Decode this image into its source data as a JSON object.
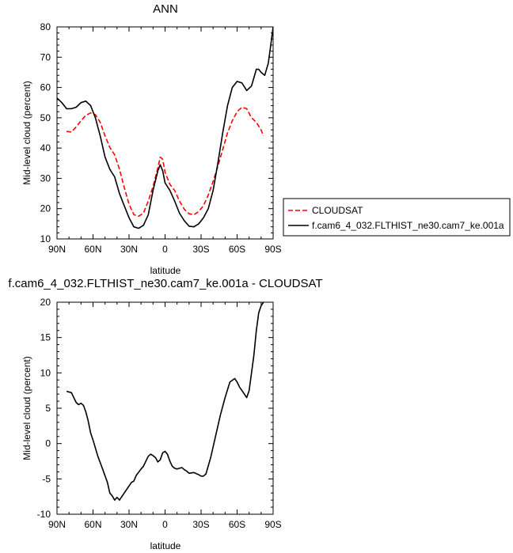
{
  "chart_data": [
    {
      "type": "line",
      "title": "ANN",
      "xlabel": "latitude",
      "ylabel": "Mid-level cloud (percent)",
      "xlim": [
        90,
        -90
      ],
      "ylim": [
        10,
        80
      ],
      "x_tick_values": [
        90,
        60,
        30,
        0,
        -30,
        -60,
        -90
      ],
      "x_tick_labels": [
        "90N",
        "60N",
        "30N",
        "0",
        "30S",
        "60S",
        "90S"
      ],
      "y_tick_values": [
        10,
        20,
        30,
        40,
        50,
        60,
        70,
        80
      ],
      "y_tick_labels": [
        "10",
        "20",
        "30",
        "40",
        "50",
        "60",
        "70",
        "80"
      ],
      "legend": {
        "placement": "right"
      },
      "series": [
        {
          "name": "CLOUDSAT",
          "color": "#ff0000",
          "dash": "dashed",
          "x": [
            82,
            78,
            74,
            70,
            66,
            62,
            58,
            54,
            50,
            46,
            42,
            38,
            34,
            30,
            26,
            22,
            18,
            14,
            10,
            6,
            4,
            2,
            0,
            -4,
            -8,
            -12,
            -16,
            -20,
            -24,
            -28,
            -32,
            -36,
            -40,
            -44,
            -48,
            -52,
            -56,
            -60,
            -64,
            -68,
            -72,
            -76,
            -80,
            -82
          ],
          "y": [
            45.5,
            45.3,
            47,
            49,
            50.8,
            51.6,
            51,
            48.5,
            44,
            40.2,
            37.8,
            33,
            27,
            21.5,
            18,
            17.5,
            18.5,
            22.5,
            27.3,
            33.5,
            37,
            36.3,
            32,
            28,
            26,
            22.5,
            19.8,
            18.3,
            18,
            19,
            21,
            24.5,
            29,
            34,
            39.5,
            45,
            49,
            52,
            53.5,
            53,
            50,
            48.5,
            46,
            44
          ]
        },
        {
          "name": "f.cam6_4_032.FLTHIST_ne30.cam7_ke.001a",
          "color": "#000000",
          "dash": "solid",
          "x": [
            90,
            86,
            82,
            78,
            74,
            70,
            66,
            62,
            58,
            54,
            50,
            46,
            42,
            38,
            34,
            30,
            26,
            22,
            18,
            14,
            10,
            6,
            4,
            2,
            0,
            -4,
            -8,
            -12,
            -16,
            -20,
            -24,
            -28,
            -32,
            -36,
            -40,
            -44,
            -48,
            -52,
            -56,
            -60,
            -64,
            -68,
            -72,
            -76,
            -78,
            -80,
            -83,
            -86,
            -88,
            -90
          ],
          "y": [
            56.5,
            55,
            53,
            53,
            53.5,
            55,
            55.5,
            54,
            50,
            44,
            37,
            33,
            30.5,
            25,
            21,
            17,
            14,
            13.5,
            14.5,
            18,
            26,
            32.5,
            34.5,
            32.5,
            28.5,
            26,
            22.5,
            18.5,
            16,
            14.2,
            14,
            15,
            17,
            20,
            26,
            35,
            45,
            54,
            60,
            62,
            61.5,
            59,
            60.5,
            66,
            66,
            65,
            64,
            68,
            74,
            80
          ]
        }
      ]
    },
    {
      "type": "line",
      "title": "f.cam6_4_032.FLTHIST_ne30.cam7_ke.001a - CLOUDSAT",
      "xlabel": "latitude",
      "ylabel": "Mid-level cloud (percent)",
      "xlim": [
        90,
        -90
      ],
      "ylim": [
        -10,
        20
      ],
      "x_tick_values": [
        90,
        60,
        30,
        0,
        -30,
        -60,
        -90
      ],
      "x_tick_labels": [
        "90N",
        "60N",
        "30N",
        "0",
        "30S",
        "60S",
        "90S"
      ],
      "y_tick_values": [
        -10,
        -5,
        0,
        5,
        10,
        15,
        20
      ],
      "y_tick_labels": [
        "-10",
        "-5",
        "0",
        "5",
        "10",
        "15",
        "20"
      ],
      "series": [
        {
          "color": "#000000",
          "dash": "solid",
          "x": [
            82,
            78,
            76,
            74,
            72,
            70,
            68,
            66,
            64,
            62,
            60,
            56,
            52,
            48,
            46,
            44,
            42,
            40,
            38,
            36,
            34,
            32,
            28,
            26,
            24,
            20,
            18,
            16,
            14,
            12,
            10,
            8,
            6,
            4,
            2,
            0,
            -2,
            -4,
            -6,
            -8,
            -10,
            -12,
            -14,
            -16,
            -18,
            -20,
            -24,
            -28,
            -30,
            -32,
            -34,
            -38,
            -42,
            -46,
            -50,
            -54,
            -58,
            -60,
            -62,
            -64,
            -66,
            -68,
            -70,
            -72,
            -74,
            -76,
            -78,
            -80,
            -82
          ],
          "y": [
            7.4,
            7.2,
            6.5,
            5.8,
            5.5,
            5.7,
            5.4,
            4.5,
            3.2,
            1.5,
            0.5,
            -1.8,
            -3.6,
            -5.5,
            -7,
            -7.4,
            -8,
            -7.6,
            -8,
            -7.5,
            -7,
            -6.5,
            -5.5,
            -5.3,
            -4.5,
            -3.6,
            -3.2,
            -2.5,
            -1.8,
            -1.5,
            -1.7,
            -2,
            -2.6,
            -2.3,
            -1.3,
            -1.1,
            -1.5,
            -2.5,
            -3.2,
            -3.5,
            -3.6,
            -3.5,
            -3.4,
            -3.7,
            -3.9,
            -4.2,
            -4.1,
            -4.4,
            -4.6,
            -4.6,
            -4.3,
            -2,
            1,
            4,
            6.5,
            8.7,
            9.2,
            8.7,
            8,
            7.5,
            7,
            6.5,
            7.5,
            10,
            12.5,
            16,
            18.5,
            19.5,
            20
          ]
        }
      ]
    }
  ]
}
